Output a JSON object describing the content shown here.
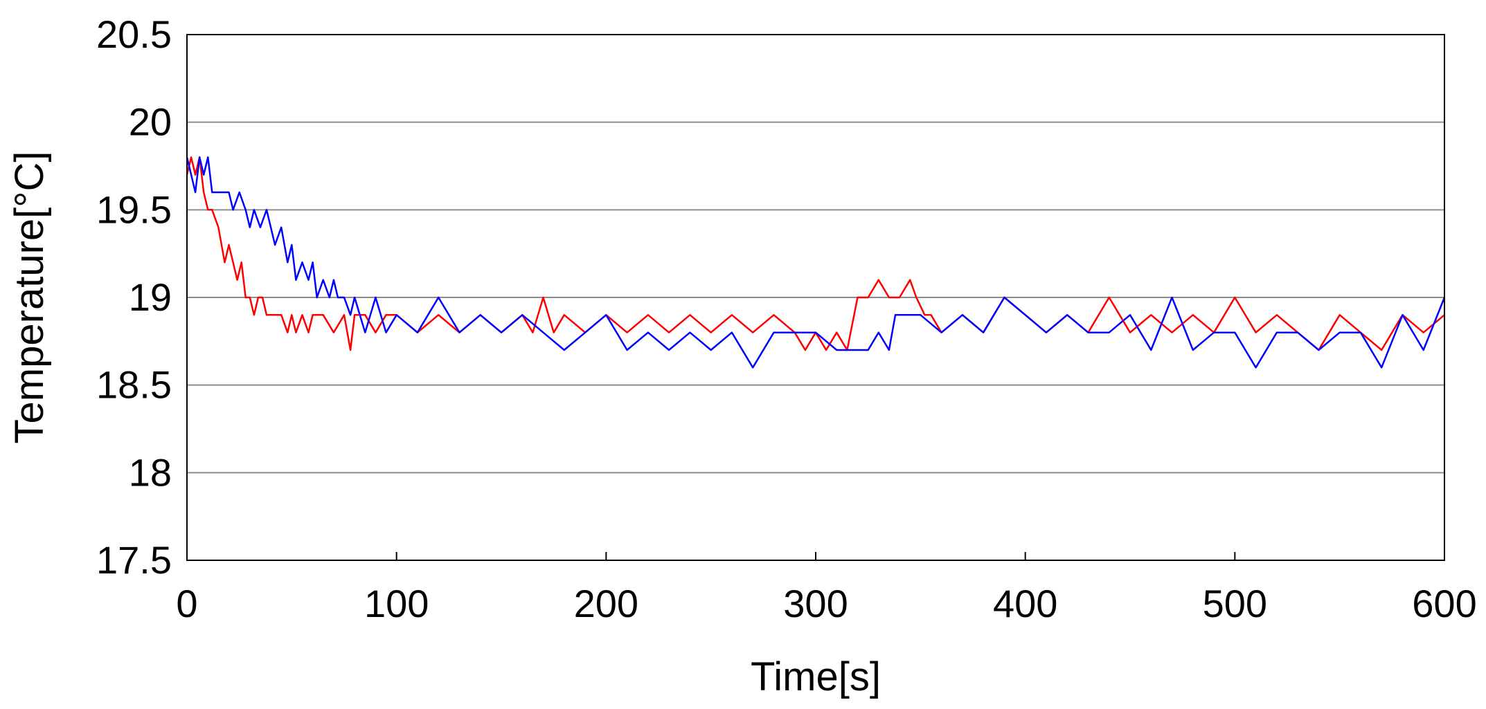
{
  "chart_data": {
    "type": "line",
    "title": "",
    "xlabel": "Time[s]",
    "ylabel": "Temperature[°C]",
    "xlim": [
      0,
      600
    ],
    "ylim": [
      17.5,
      20.5
    ],
    "xticks": [
      0,
      100,
      200,
      300,
      400,
      500,
      600
    ],
    "yticks": [
      17.5,
      18,
      18.5,
      19,
      19.5,
      20,
      20.5
    ],
    "xtick_labels": [
      "0",
      "100",
      "200",
      "300",
      "400",
      "500",
      "600"
    ],
    "ytick_labels": [
      "17.5",
      "18",
      "18.5",
      "19",
      "19.5",
      "20",
      "20.5"
    ],
    "grid": "horizontal",
    "legend": "none",
    "series": [
      {
        "color": "#ff0000",
        "x": [
          0,
          2,
          4,
          6,
          8,
          10,
          12,
          15,
          18,
          20,
          22,
          24,
          26,
          28,
          30,
          32,
          34,
          36,
          38,
          40,
          45,
          48,
          50,
          52,
          55,
          58,
          60,
          65,
          70,
          75,
          78,
          80,
          85,
          90,
          95,
          100,
          110,
          120,
          130,
          140,
          150,
          160,
          165,
          170,
          175,
          180,
          190,
          200,
          210,
          220,
          230,
          240,
          250,
          260,
          270,
          280,
          290,
          295,
          300,
          305,
          310,
          315,
          320,
          325,
          330,
          335,
          340,
          345,
          348,
          352,
          355,
          360,
          370,
          380,
          390,
          400,
          410,
          420,
          430,
          440,
          450,
          460,
          470,
          480,
          490,
          500,
          510,
          520,
          530,
          540,
          550,
          560,
          570,
          580,
          590,
          600
        ],
        "y": [
          19.7,
          19.8,
          19.7,
          19.8,
          19.6,
          19.5,
          19.5,
          19.4,
          19.2,
          19.3,
          19.2,
          19.1,
          19.2,
          19.0,
          19.0,
          18.9,
          19.0,
          19.0,
          18.9,
          18.9,
          18.9,
          18.8,
          18.9,
          18.8,
          18.9,
          18.8,
          18.9,
          18.9,
          18.8,
          18.9,
          18.7,
          18.9,
          18.9,
          18.8,
          18.9,
          18.9,
          18.8,
          18.9,
          18.8,
          18.9,
          18.8,
          18.9,
          18.8,
          19.0,
          18.8,
          18.9,
          18.8,
          18.9,
          18.8,
          18.9,
          18.8,
          18.9,
          18.8,
          18.9,
          18.8,
          18.9,
          18.8,
          18.7,
          18.8,
          18.7,
          18.8,
          18.7,
          19.0,
          19.0,
          19.1,
          19.0,
          19.0,
          19.1,
          19.0,
          18.9,
          18.9,
          18.8,
          18.9,
          18.8,
          19.0,
          18.9,
          18.8,
          18.9,
          18.8,
          19.0,
          18.8,
          18.9,
          18.8,
          18.9,
          18.8,
          19.0,
          18.8,
          18.9,
          18.8,
          18.7,
          18.9,
          18.8,
          18.7,
          18.9,
          18.8,
          18.9
        ]
      },
      {
        "color": "#0000ff",
        "x": [
          0,
          2,
          4,
          6,
          8,
          10,
          12,
          15,
          20,
          22,
          25,
          28,
          30,
          32,
          35,
          38,
          40,
          42,
          45,
          48,
          50,
          52,
          55,
          58,
          60,
          62,
          65,
          68,
          70,
          72,
          75,
          78,
          80,
          85,
          90,
          95,
          100,
          110,
          120,
          130,
          140,
          150,
          160,
          170,
          180,
          190,
          200,
          210,
          220,
          230,
          240,
          250,
          260,
          270,
          280,
          290,
          300,
          310,
          315,
          320,
          325,
          330,
          335,
          338,
          340,
          345,
          350,
          360,
          370,
          380,
          390,
          400,
          410,
          420,
          430,
          440,
          450,
          460,
          470,
          480,
          490,
          500,
          510,
          520,
          530,
          540,
          550,
          560,
          570,
          580,
          590,
          600
        ],
        "y": [
          19.8,
          19.7,
          19.6,
          19.8,
          19.7,
          19.8,
          19.6,
          19.6,
          19.6,
          19.5,
          19.6,
          19.5,
          19.4,
          19.5,
          19.4,
          19.5,
          19.4,
          19.3,
          19.4,
          19.2,
          19.3,
          19.1,
          19.2,
          19.1,
          19.2,
          19.0,
          19.1,
          19.0,
          19.1,
          19.0,
          19.0,
          18.9,
          19.0,
          18.8,
          19.0,
          18.8,
          18.9,
          18.8,
          19.0,
          18.8,
          18.9,
          18.8,
          18.9,
          18.8,
          18.7,
          18.8,
          18.9,
          18.7,
          18.8,
          18.7,
          18.8,
          18.7,
          18.8,
          18.6,
          18.8,
          18.8,
          18.8,
          18.7,
          18.7,
          18.7,
          18.7,
          18.8,
          18.7,
          18.9,
          18.9,
          18.9,
          18.9,
          18.8,
          18.9,
          18.8,
          19.0,
          18.9,
          18.8,
          18.9,
          18.8,
          18.8,
          18.9,
          18.7,
          19.0,
          18.7,
          18.8,
          18.8,
          18.6,
          18.8,
          18.8,
          18.7,
          18.8,
          18.8,
          18.6,
          18.9,
          18.7,
          19.0
        ]
      }
    ]
  }
}
